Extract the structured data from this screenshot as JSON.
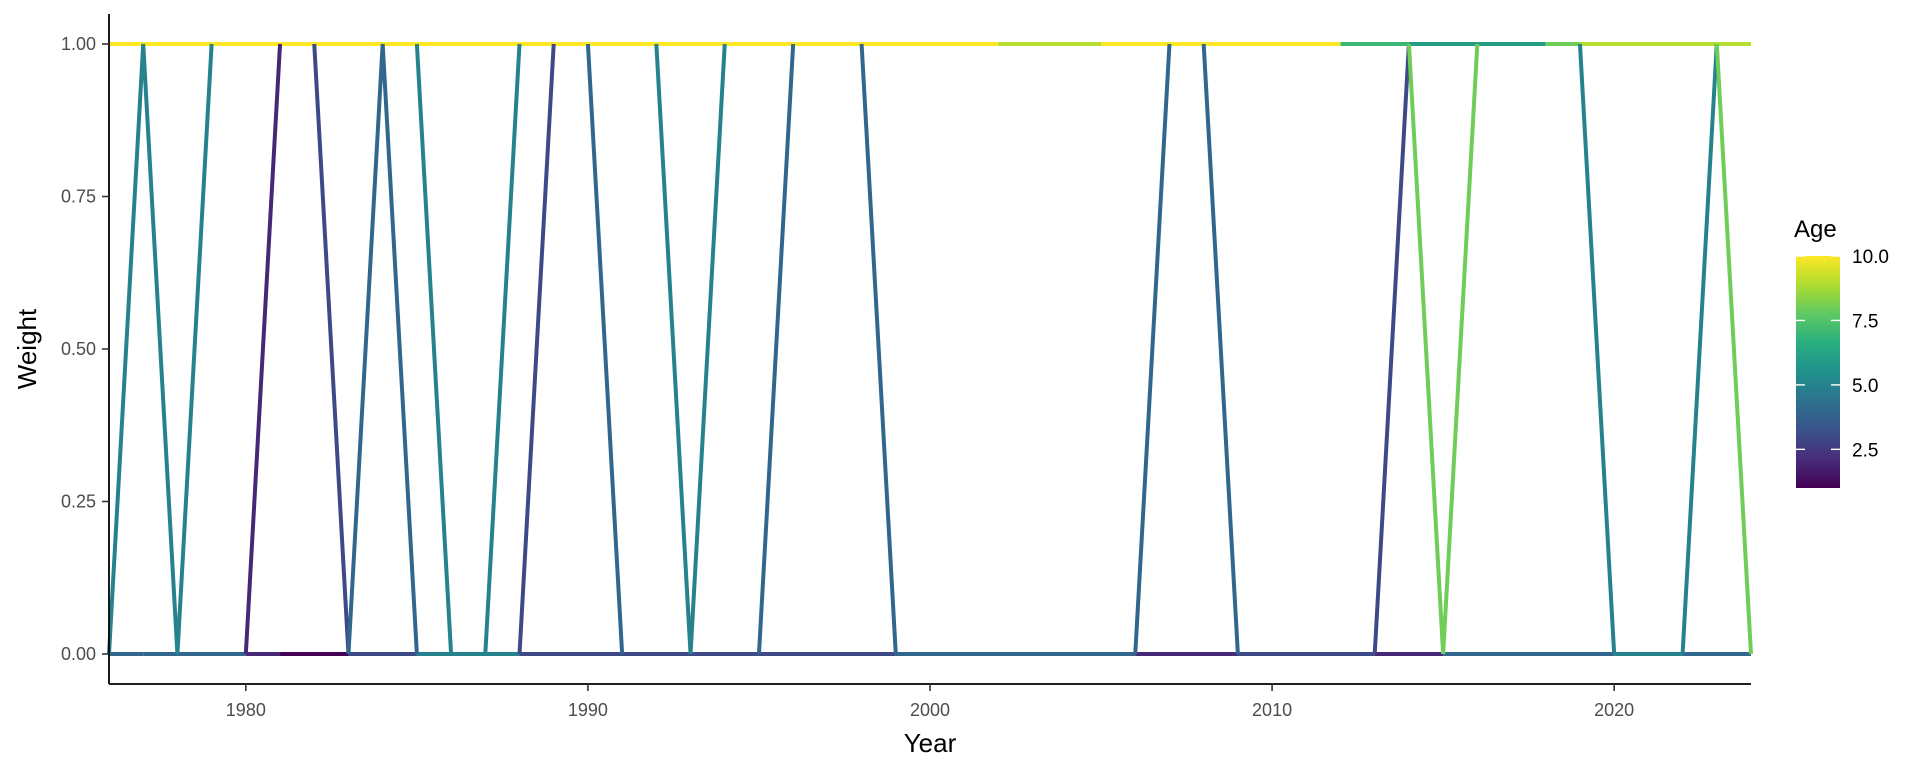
{
  "chart_data": {
    "type": "line",
    "title": "",
    "xlabel": "Year",
    "ylabel": "Weight",
    "xlim": [
      1976,
      2024
    ],
    "ylim": [
      0,
      1
    ],
    "x_ticks": [
      1980,
      1990,
      2000,
      2010,
      2020
    ],
    "y_ticks": [
      "0.00",
      "0.25",
      "0.50",
      "0.75",
      "1.00"
    ],
    "grid": false,
    "legend": {
      "title": "Age",
      "type": "colorbar",
      "position": "right",
      "min": 1,
      "max": 10,
      "ticks": [
        "2.5",
        "5.0",
        "7.5",
        "10.0"
      ],
      "palette": "viridis"
    },
    "baseline_segments": [
      {
        "x": [
          1976,
          1977
        ],
        "y": [
          0,
          0
        ],
        "age": 4
      },
      {
        "x": [
          1977,
          1978
        ],
        "y": [
          0,
          0
        ],
        "age": 4
      },
      {
        "x": [
          1978,
          1980
        ],
        "y": [
          0,
          0
        ],
        "age": 4
      },
      {
        "x": [
          1980,
          1981
        ],
        "y": [
          0,
          0
        ],
        "age": 2
      },
      {
        "x": [
          1981,
          1983
        ],
        "y": [
          0,
          0
        ],
        "age": 1
      },
      {
        "x": [
          1983,
          1985
        ],
        "y": [
          0,
          0
        ],
        "age": 3
      },
      {
        "x": [
          1985,
          1988
        ],
        "y": [
          0,
          0
        ],
        "age": 5
      },
      {
        "x": [
          1988,
          1995
        ],
        "y": [
          0,
          0
        ],
        "age": 3
      },
      {
        "x": [
          1995,
          1999
        ],
        "y": [
          0,
          0
        ],
        "age": 3
      },
      {
        "x": [
          1999,
          2006
        ],
        "y": [
          0,
          0
        ],
        "age": 4
      },
      {
        "x": [
          2006,
          2009
        ],
        "y": [
          0,
          0
        ],
        "age": 2
      },
      {
        "x": [
          2009,
          2013
        ],
        "y": [
          0,
          0
        ],
        "age": 3
      },
      {
        "x": [
          2013,
          2015
        ],
        "y": [
          0,
          0
        ],
        "age": 2
      },
      {
        "x": [
          2015,
          2020
        ],
        "y": [
          0,
          0
        ],
        "age": 4
      },
      {
        "x": [
          2020,
          2022
        ],
        "y": [
          0,
          0
        ],
        "age": 5
      },
      {
        "x": [
          2022,
          2024
        ],
        "y": [
          0,
          0
        ],
        "age": 4
      }
    ],
    "top_segments": [
      {
        "x": [
          1976,
          2002
        ],
        "y": [
          1,
          1
        ],
        "age": 10
      },
      {
        "x": [
          2002,
          2005
        ],
        "y": [
          1,
          1
        ],
        "age": 9
      },
      {
        "x": [
          2005,
          2012
        ],
        "y": [
          1,
          1
        ],
        "age": 10
      },
      {
        "x": [
          2012,
          2014
        ],
        "y": [
          1,
          1
        ],
        "age": 7
      },
      {
        "x": [
          2014,
          2018
        ],
        "y": [
          1,
          1
        ],
        "age": 6
      },
      {
        "x": [
          2018,
          2019
        ],
        "y": [
          1,
          1
        ],
        "age": 8
      },
      {
        "x": [
          2019,
          2024
        ],
        "y": [
          1,
          1
        ],
        "age": 9
      }
    ],
    "spikes": [
      {
        "x": [
          1976,
          1977,
          1978
        ],
        "y": [
          0,
          1,
          0
        ],
        "age": 5
      },
      {
        "x": [
          1978,
          1979
        ],
        "y": [
          0,
          1
        ],
        "age": 5
      },
      {
        "x": [
          1980,
          1981
        ],
        "y": [
          0,
          1
        ],
        "age": 2
      },
      {
        "x": [
          1982,
          1983
        ],
        "y": [
          1,
          0
        ],
        "age": 3
      },
      {
        "x": [
          1983,
          1984,
          1985
        ],
        "y": [
          0,
          1,
          0
        ],
        "age": 4
      },
      {
        "x": [
          1985,
          1986
        ],
        "y": [
          1,
          0
        ],
        "age": 5
      },
      {
        "x": [
          1987,
          1988
        ],
        "y": [
          0,
          1
        ],
        "age": 5
      },
      {
        "x": [
          1988,
          1989
        ],
        "y": [
          0,
          1
        ],
        "age": 3
      },
      {
        "x": [
          1990,
          1991
        ],
        "y": [
          1,
          0
        ],
        "age": 4
      },
      {
        "x": [
          1992,
          1993
        ],
        "y": [
          1,
          0
        ],
        "age": 5
      },
      {
        "x": [
          1993,
          1994
        ],
        "y": [
          0,
          1
        ],
        "age": 5
      },
      {
        "x": [
          1995,
          1996
        ],
        "y": [
          0,
          1
        ],
        "age": 4
      },
      {
        "x": [
          1998,
          1999
        ],
        "y": [
          1,
          0
        ],
        "age": 4
      },
      {
        "x": [
          2006,
          2007
        ],
        "y": [
          0,
          1
        ],
        "age": 4
      },
      {
        "x": [
          2008,
          2009
        ],
        "y": [
          1,
          0
        ],
        "age": 4
      },
      {
        "x": [
          2013,
          2014
        ],
        "y": [
          0,
          1
        ],
        "age": 3
      },
      {
        "x": [
          2014,
          2015
        ],
        "y": [
          1,
          0
        ],
        "age": 8
      },
      {
        "x": [
          2015,
          2016
        ],
        "y": [
          0,
          1
        ],
        "age": 8
      },
      {
        "x": [
          2019,
          2020
        ],
        "y": [
          1,
          0
        ],
        "age": 5
      },
      {
        "x": [
          2022,
          2023
        ],
        "y": [
          0,
          1
        ],
        "age": 5
      },
      {
        "x": [
          2023,
          2024
        ],
        "y": [
          1,
          0
        ],
        "age": 8
      }
    ]
  }
}
